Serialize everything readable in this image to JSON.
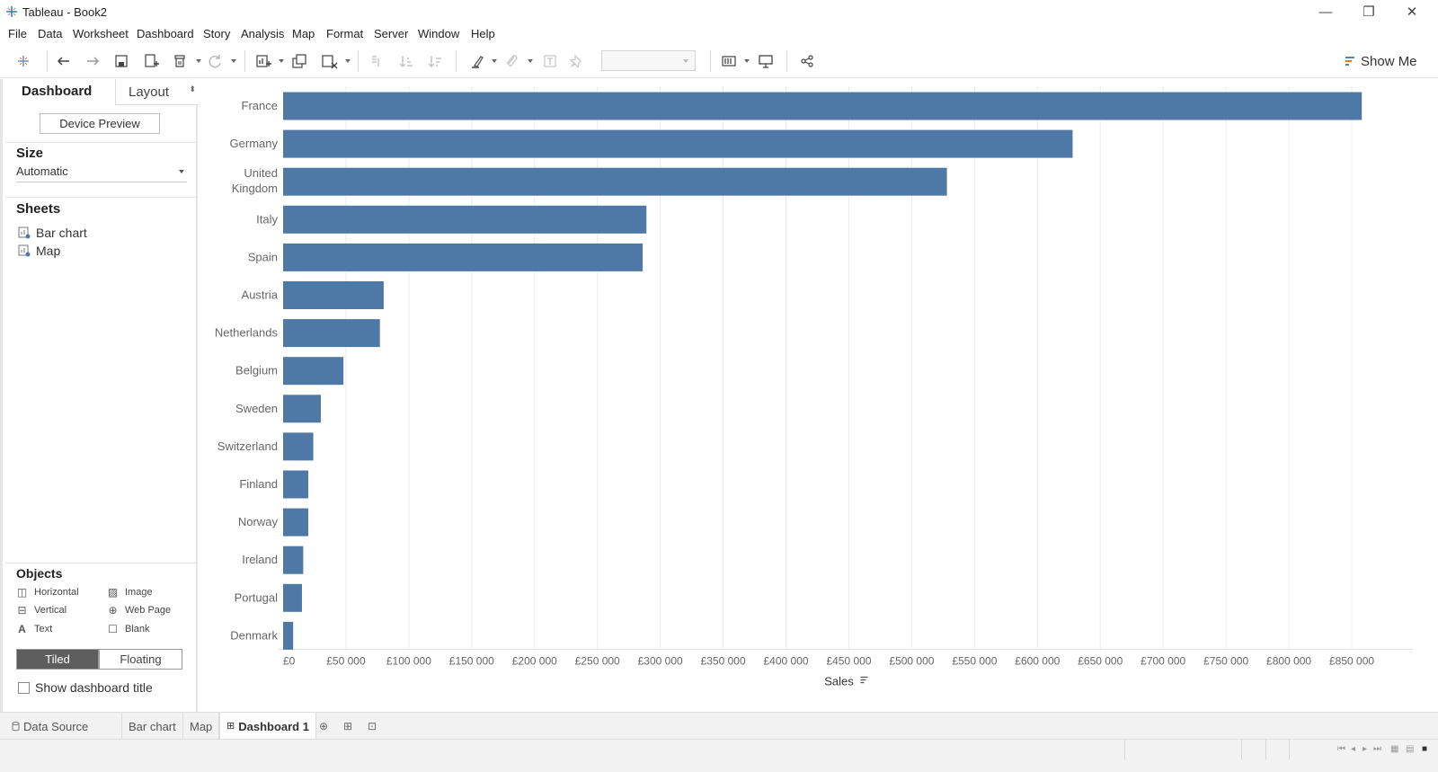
{
  "window": {
    "title": "Tableau - Book2",
    "minimize": "—",
    "restore": "❐",
    "close": "✕"
  },
  "menu": [
    "File",
    "Data",
    "Worksheet",
    "Dashboard",
    "Story",
    "Analysis",
    "Map",
    "Format",
    "Server",
    "Window",
    "Help"
  ],
  "toolbar": {
    "show_me_label": "Show Me"
  },
  "left_pane": {
    "tab_dashboard": "Dashboard",
    "tab_layout": "Layout",
    "device_preview": "Device Preview",
    "size_title": "Size",
    "size_value": "Automatic",
    "sheets_title": "Sheets",
    "sheets": [
      "Bar chart",
      "Map"
    ],
    "objects_title": "Objects",
    "objects": [
      "Horizontal",
      "Image",
      "Vertical",
      "Web Page",
      "Text",
      "Blank"
    ],
    "tiled_label": "Tiled",
    "floating_label": "Floating",
    "show_title_label": "Show dashboard title"
  },
  "chart_data": {
    "type": "bar",
    "orientation": "horizontal",
    "categories": [
      "France",
      "Germany",
      "United Kingdom",
      "Italy",
      "Spain",
      "Austria",
      "Netherlands",
      "Belgium",
      "Sweden",
      "Switzerland",
      "Finland",
      "Norway",
      "Ireland",
      "Portugal",
      "Denmark"
    ],
    "category_labels": [
      [
        "France"
      ],
      [
        "Germany"
      ],
      [
        "United",
        "Kingdom"
      ],
      [
        "Italy"
      ],
      [
        "Spain"
      ],
      [
        "Austria"
      ],
      [
        "Netherlands"
      ],
      [
        "Belgium"
      ],
      [
        "Sweden"
      ],
      [
        "Switzerland"
      ],
      [
        "Finland"
      ],
      [
        "Norway"
      ],
      [
        "Ireland"
      ],
      [
        "Portugal"
      ],
      [
        "Denmark"
      ]
    ],
    "values": [
      858000,
      628000,
      528000,
      289000,
      286000,
      80000,
      77000,
      48000,
      30000,
      24000,
      20000,
      20000,
      16000,
      15000,
      8000
    ],
    "xlabel": "Sales",
    "xlim": [
      0,
      870000
    ],
    "ticks": [
      0,
      50000,
      100000,
      150000,
      200000,
      250000,
      300000,
      350000,
      400000,
      450000,
      500000,
      550000,
      600000,
      650000,
      700000,
      750000,
      800000,
      850000
    ],
    "tick_labels": [
      "£0",
      "£50 000",
      "£100 000",
      "£150 000",
      "£200 000",
      "£250 000",
      "£300 000",
      "£350 000",
      "£400 000",
      "£450 000",
      "£500 000",
      "£550 000",
      "£600 000",
      "£650 000",
      "£700 000",
      "£750 000",
      "£800 000",
      "£850 000"
    ],
    "grid": true,
    "bar_color": "#4e79a7"
  },
  "sheet_tabs": [
    "Data Source",
    "Bar chart",
    "Map",
    "Dashboard 1"
  ],
  "colors": {
    "accent": "#4e79a7",
    "active_segment": "#5d5d5d"
  }
}
